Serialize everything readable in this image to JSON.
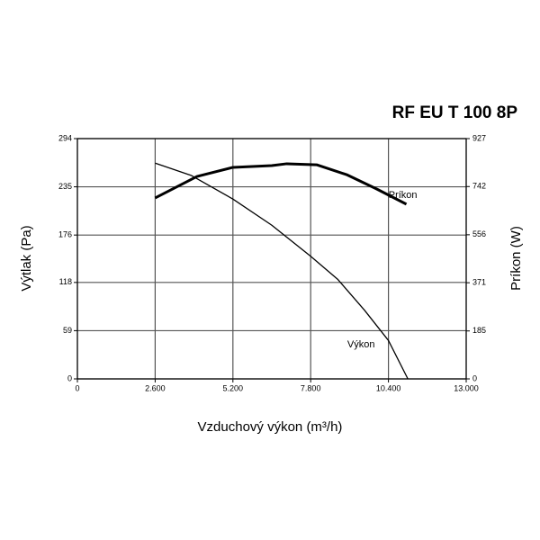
{
  "chart_data": {
    "type": "line",
    "title": "RF EU T 100 8P",
    "xlabel": "Vzduchový výkon (m³/h)",
    "ylabel": "Výtlak (Pa)",
    "y2label": "Príkon (W)",
    "xlim": [
      0,
      13000
    ],
    "xticks": [
      0,
      {
        "value": 2600,
        "label": "2.600"
      },
      {
        "value": 5200,
        "label": "5.200"
      },
      {
        "value": 7800,
        "label": "7.800"
      },
      {
        "value": 10400,
        "label": "10.400"
      },
      {
        "value": 13000,
        "label": "13.000"
      }
    ],
    "ylim": [
      0,
      294
    ],
    "yticks": [
      0,
      59,
      118,
      176,
      235,
      294
    ],
    "y2lim": [
      0,
      927
    ],
    "y2ticks": [
      0,
      185,
      371,
      556,
      742,
      927
    ],
    "grid": true,
    "series": [
      {
        "name": "Výkon",
        "color": "#000000",
        "axis": "y",
        "x": [
          2600,
          3800,
          5200,
          6500,
          7800,
          8700,
          9600,
          10400,
          11050
        ],
        "values": [
          264,
          249,
          220,
          188,
          150,
          122,
          84,
          47,
          0
        ]
      },
      {
        "name": "Príkon",
        "color": "#000000",
        "axis": "y2",
        "x": [
          2600,
          4000,
          5200,
          6500,
          7000,
          8000,
          9000,
          10000,
          11000
        ],
        "values": [
          698,
          781,
          816,
          823,
          830,
          826,
          788,
          733,
          674
        ]
      }
    ]
  }
}
